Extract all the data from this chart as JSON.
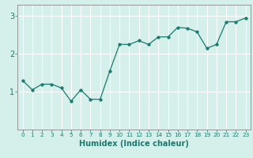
{
  "x": [
    0,
    1,
    2,
    3,
    4,
    5,
    6,
    7,
    8,
    9,
    10,
    11,
    12,
    13,
    14,
    15,
    16,
    17,
    18,
    19,
    20,
    21,
    22,
    23
  ],
  "y": [
    1.3,
    1.05,
    1.2,
    1.2,
    1.1,
    0.75,
    1.05,
    0.8,
    0.8,
    1.55,
    2.25,
    2.25,
    2.35,
    2.25,
    2.45,
    2.45,
    2.7,
    2.68,
    2.58,
    2.15,
    2.25,
    2.85,
    2.85,
    2.95
  ],
  "line_color": "#1a7a6e",
  "marker": "o",
  "marker_size": 2.5,
  "background_color": "#d5efeb",
  "grid_color": "#ffffff",
  "xlabel": "Humidex (Indice chaleur)",
  "ylabel": "",
  "title": "",
  "xlim": [
    -0.5,
    23.5
  ],
  "ylim": [
    0,
    3.3
  ],
  "yticks": [
    1,
    2,
    3
  ],
  "xticks": [
    0,
    1,
    2,
    3,
    4,
    5,
    6,
    7,
    8,
    9,
    10,
    11,
    12,
    13,
    14,
    15,
    16,
    17,
    18,
    19,
    20,
    21,
    22,
    23
  ],
  "xtick_labels": [
    "0",
    "1",
    "2",
    "3",
    "4",
    "5",
    "6",
    "7",
    "8",
    "9",
    "10",
    "11",
    "12",
    "13",
    "14",
    "15",
    "16",
    "17",
    "18",
    "19",
    "20",
    "21",
    "22",
    "23"
  ],
  "tick_color": "#1a7a6e",
  "label_color": "#1a7a6e",
  "spine_color": "#888888",
  "xlabel_fontsize": 7,
  "ytick_fontsize": 7,
  "xtick_fontsize": 5.2
}
